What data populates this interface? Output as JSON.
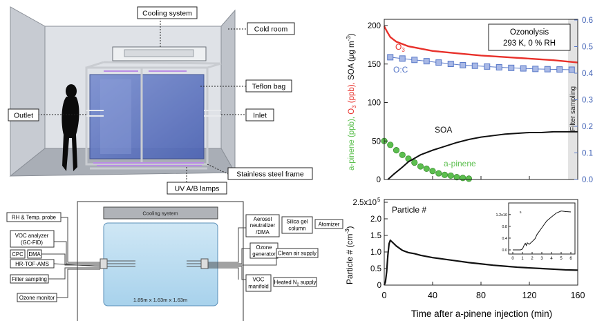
{
  "chamber_illustration": {
    "callouts": {
      "cooling": "Cooling system",
      "cold_room": "Cold room",
      "teflon": "Teflon bag",
      "outlet": "Outlet",
      "inlet": "Inlet",
      "frame": "Stainless steel frame",
      "lamps": "UV A/B lamps"
    }
  },
  "schematic": {
    "cooling": "Cooling system",
    "dimensions": "1.85m x 1.63m x 1.63m",
    "left_boxes": {
      "rh": "RH & Temp. probe",
      "voc1": "VOC analyzer",
      "voc2": "(GC-FID)",
      "cpc": "CPC",
      "dma": "DMA",
      "hrtof": "HR-TOF-AMS",
      "filter": "Filter sampling",
      "ozone_mon": "Ozone monitor"
    },
    "right_boxes": {
      "aero1": "Aerosol",
      "aero2": "neutralizer",
      "aero3": "/DMA",
      "silica1": "Silica gel",
      "silica2": "column",
      "atomizer": "Atomizer",
      "ozgen1": "Ozone",
      "ozgen2": "generator",
      "clean": "Clean air supply",
      "voc1": "VOC",
      "voc2": "manifold",
      "heated": "Heated N",
      "heated_sub": "2",
      "heated_suffix": " supply"
    }
  },
  "chart_data": [
    {
      "type": "line",
      "panel": "top",
      "annotation_lines": [
        "Ozonolysis",
        "293 K, 0 % RH"
      ],
      "x_range": [
        0,
        160
      ],
      "y_left_range": [
        0,
        200
      ],
      "y_left_ticks": [
        "0",
        "50",
        "100",
        "150",
        "200"
      ],
      "y_right_range": [
        0,
        0.6
      ],
      "y_right_ticks": [
        "0.0",
        "0.1",
        "0.2",
        "0.3",
        "0.4",
        "0.5",
        "0.6"
      ],
      "y_left_label_parts": [
        "a-pinene (ppb), ",
        "O",
        "3",
        " (ppb), ",
        "SOA (μg m",
        "-3",
        ")"
      ],
      "shaded_label": "Filter sampling",
      "shaded_region": [
        152,
        160
      ],
      "series": [
        {
          "name": "O3",
          "label_main": "O",
          "label_sub": "3",
          "axis": "left",
          "color": "#e8302a",
          "x": [
            0,
            2,
            5,
            10,
            20,
            30,
            40,
            60,
            80,
            100,
            120,
            140,
            160
          ],
          "y": [
            199,
            193,
            185,
            179,
            173,
            170,
            167,
            164,
            161,
            159,
            157,
            155,
            152
          ]
        },
        {
          "name": "O:C",
          "label": "O:C",
          "axis": "right",
          "color": "#5878c8",
          "x": [
            5,
            15,
            25,
            35,
            45,
            55,
            65,
            75,
            85,
            95,
            105,
            115,
            125,
            135,
            145,
            155
          ],
          "y": [
            0.46,
            0.455,
            0.45,
            0.445,
            0.44,
            0.435,
            0.43,
            0.428,
            0.425,
            0.422,
            0.42,
            0.418,
            0.416,
            0.415,
            0.414,
            0.413
          ]
        },
        {
          "name": "a-pinene",
          "label": "a-pinene",
          "axis": "left",
          "color": "#5cbf4f",
          "x": [
            0,
            5,
            10,
            15,
            20,
            25,
            30,
            35,
            40,
            45,
            50,
            55,
            60,
            65,
            70
          ],
          "y": [
            50,
            45,
            38,
            32,
            27,
            22,
            17,
            14,
            11,
            8,
            6,
            5,
            3,
            2,
            1
          ]
        },
        {
          "name": "SOA",
          "label": "SOA",
          "axis": "left",
          "color": "#111111",
          "x": [
            3,
            8,
            15,
            20,
            30,
            40,
            50,
            60,
            70,
            80,
            90,
            100,
            110,
            120,
            130,
            140,
            150,
            160
          ],
          "y": [
            0,
            7,
            16,
            23,
            32,
            38,
            43,
            48,
            52,
            55,
            57,
            59,
            60,
            61,
            61,
            62,
            62,
            62
          ]
        }
      ]
    },
    {
      "type": "line",
      "panel": "bottom",
      "title": "Particle #",
      "x_range": [
        0,
        160
      ],
      "x_ticks": [
        "0",
        "40",
        "80",
        "120",
        "160"
      ],
      "xlabel": "Time after a-pinene injection (min)",
      "y_range": [
        0,
        250000
      ],
      "y_tick_labels": [
        "0",
        "0.5",
        "1.0",
        "1.5",
        "2.0",
        "2.5x10"
      ],
      "y_tick_exp": "5",
      "ylabel_parts": [
        "Particle # (cm",
        "-3",
        ")"
      ],
      "series": [
        {
          "name": "Particle #",
          "color": "#111111",
          "x": [
            0,
            1,
            2,
            3,
            4,
            5,
            6,
            8,
            10,
            15,
            20,
            25,
            30,
            40,
            50,
            60,
            70,
            80,
            90,
            100,
            110,
            120,
            130,
            140,
            150,
            160
          ],
          "y": [
            0,
            10000,
            40000,
            90000,
            125000,
            135000,
            132000,
            125000,
            118000,
            105000,
            98000,
            95000,
            90000,
            83000,
            78000,
            73000,
            68000,
            64000,
            60000,
            57000,
            54000,
            52000,
            50000,
            48000,
            46000,
            45000
          ]
        }
      ],
      "inset": {
        "x_range": [
          0,
          6
        ],
        "x_ticks": [
          "0",
          "1",
          "2",
          "3",
          "4",
          "5",
          "6"
        ],
        "y_range": [
          0,
          150000
        ],
        "y_tick_labels": [
          "0.0",
          "0.4",
          "0.8",
          "1.2x10"
        ],
        "y_tick_exp": "5",
        "series": [
          {
            "name": "Particle # (early)",
            "color": "#111111",
            "x": [
              0,
              0.8,
              1,
              1.1,
              1.2,
              1.3,
              1.4,
              1.5,
              1.7,
              2,
              2.3,
              2.5,
              3,
              3.5,
              4,
              4.5,
              5,
              5.5,
              6
            ],
            "y": [
              0,
              0,
              3000,
              10000,
              18000,
              22000,
              15000,
              24000,
              19000,
              28000,
              38000,
              52000,
              75000,
              98000,
              112000,
              125000,
              132000,
              130000,
              129000
            ]
          }
        ]
      }
    }
  ]
}
